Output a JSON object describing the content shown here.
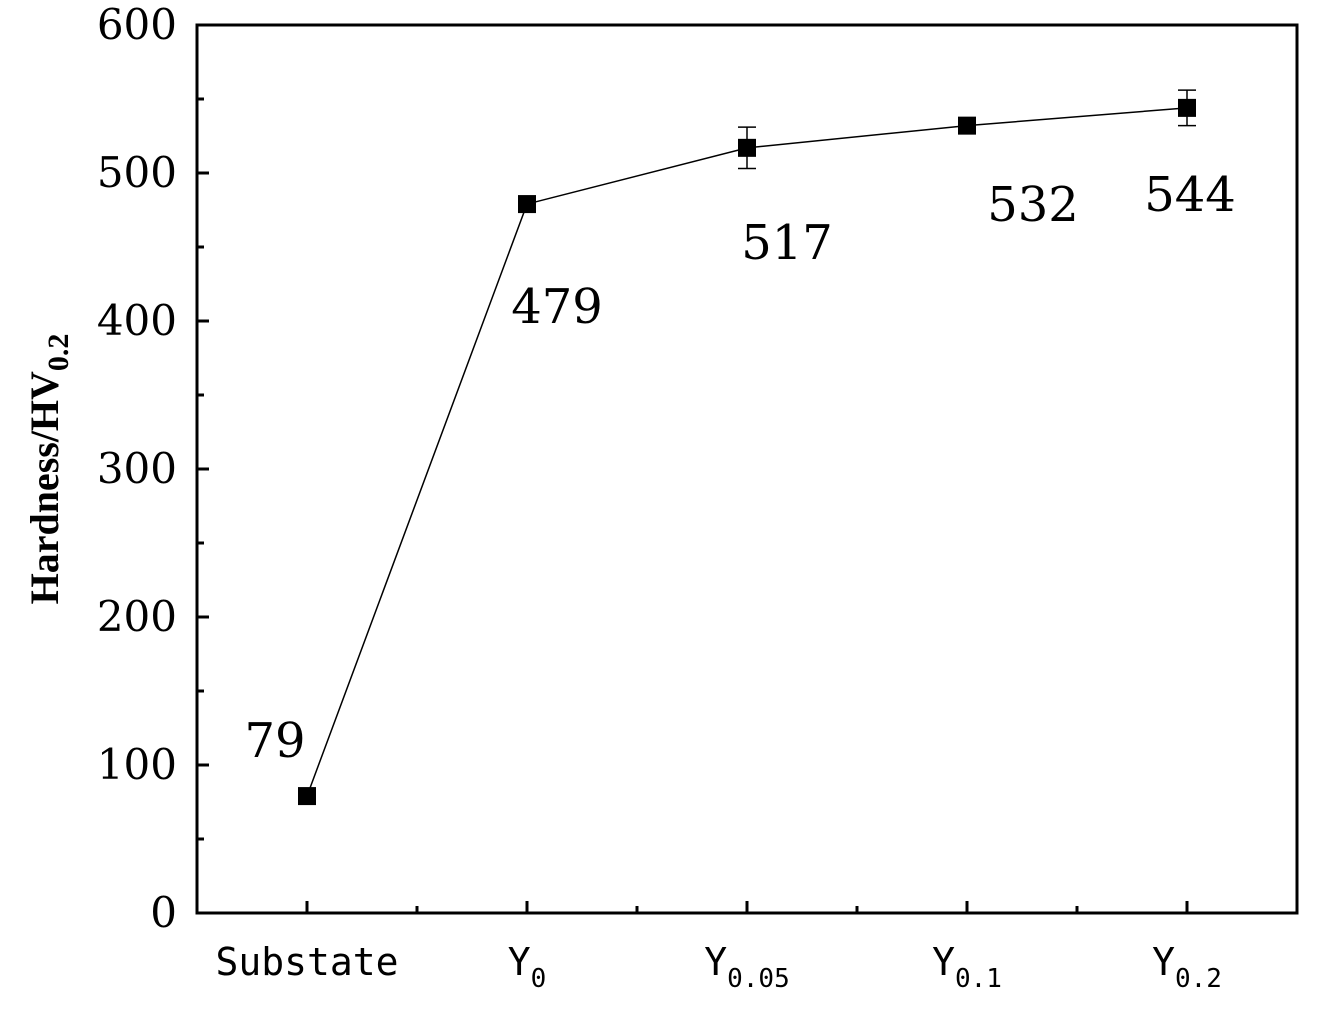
{
  "chart_data": {
    "type": "line",
    "categories": [
      {
        "base": "Substate",
        "sub": ""
      },
      {
        "base": "Y",
        "sub": "0"
      },
      {
        "base": "Y",
        "sub": "0.05"
      },
      {
        "base": "Y",
        "sub": "0.1"
      },
      {
        "base": "Y",
        "sub": "0.2"
      }
    ],
    "series": [
      {
        "values": [
          79,
          479,
          517,
          532,
          544
        ],
        "errors": [
          0,
          0,
          14,
          0,
          12
        ],
        "data_labels": [
          "79",
          "479",
          "517",
          "532",
          "544"
        ],
        "marker": "square",
        "color": "#000000"
      }
    ],
    "title": "",
    "xlabel": "",
    "ylabel": {
      "base": "Hardness/HV",
      "sub": "0.2"
    },
    "ylim": [
      0,
      600
    ],
    "yticks": [
      "0",
      "100",
      "200",
      "300",
      "400",
      "500",
      "600"
    ],
    "grid": false,
    "legend": "none"
  }
}
